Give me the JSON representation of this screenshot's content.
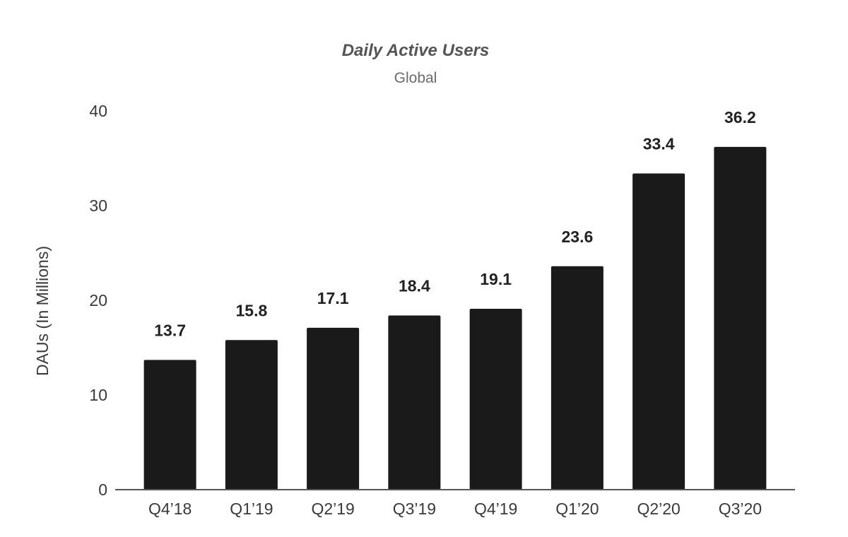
{
  "chart_data": {
    "type": "bar",
    "title": "Daily Active Users",
    "subtitle": "Global",
    "xlabel": "",
    "ylabel": "DAUs (In Millions)",
    "ylim": [
      0,
      40
    ],
    "yticks": [
      0,
      10,
      20,
      30,
      40
    ],
    "grid": false,
    "categories": [
      "Q4’18",
      "Q1’19",
      "Q2’19",
      "Q3’19",
      "Q4’19",
      "Q1’20",
      "Q2’20",
      "Q3’20"
    ],
    "values": [
      13.7,
      15.8,
      17.1,
      18.4,
      19.1,
      23.6,
      33.4,
      36.2
    ],
    "data_labels": [
      "13.7",
      "15.8",
      "17.1",
      "18.4",
      "19.1",
      "23.6",
      "33.4",
      "36.2"
    ],
    "bar_color": "#1a1a1a"
  }
}
